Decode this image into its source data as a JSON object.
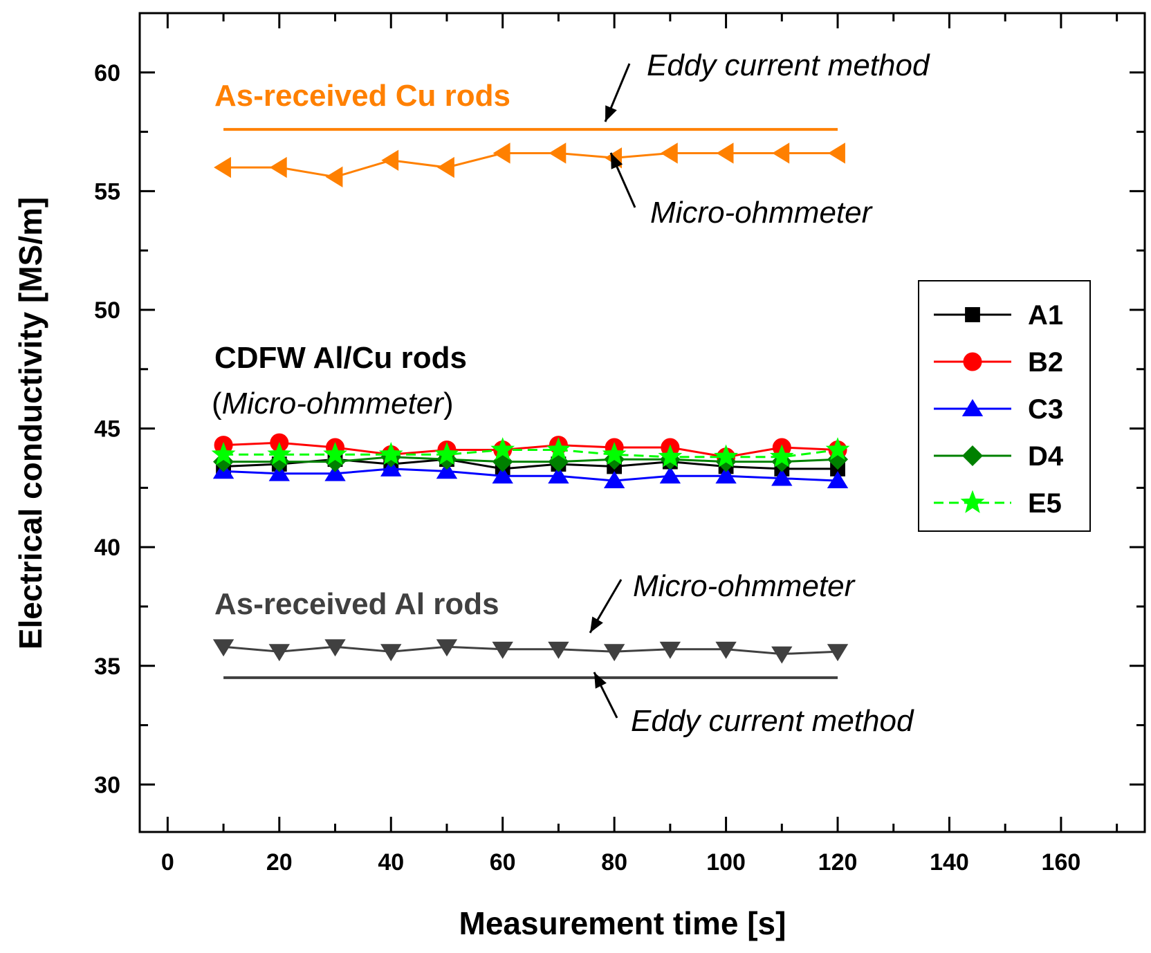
{
  "chart_data": {
    "type": "line",
    "xlabel": "Measurement time [s]",
    "ylabel": "Electrical conductivity [MS/m]",
    "xlim": [
      -5,
      175
    ],
    "ylim": [
      28,
      62.5
    ],
    "xticks": [
      "0",
      "20",
      "40",
      "60",
      "80",
      "100",
      "120",
      "140",
      "160"
    ],
    "yticks": [
      "30",
      "35",
      "40",
      "45",
      "50",
      "55",
      "60"
    ],
    "x": [
      10,
      20,
      30,
      40,
      50,
      60,
      70,
      80,
      90,
      100,
      110,
      120
    ],
    "legend_position": "right",
    "series": [
      {
        "name": "A1",
        "legend": true,
        "color": "#000000",
        "marker": "square",
        "values": [
          43.4,
          43.5,
          43.7,
          43.5,
          43.7,
          43.3,
          43.5,
          43.4,
          43.6,
          43.4,
          43.3,
          43.3
        ]
      },
      {
        "name": "B2",
        "legend": true,
        "color": "#ff0000",
        "marker": "circle",
        "values": [
          44.3,
          44.4,
          44.2,
          43.9,
          44.1,
          44.1,
          44.3,
          44.2,
          44.2,
          43.8,
          44.2,
          44.1
        ]
      },
      {
        "name": "C3",
        "legend": true,
        "color": "#0000ff",
        "marker": "triangle-up",
        "values": [
          43.2,
          43.1,
          43.1,
          43.3,
          43.2,
          43.0,
          43.0,
          42.8,
          43.0,
          43.0,
          42.9,
          42.8
        ]
      },
      {
        "name": "D4",
        "legend": true,
        "color": "#008000",
        "marker": "diamond",
        "values": [
          43.6,
          43.6,
          43.6,
          43.8,
          43.7,
          43.6,
          43.6,
          43.7,
          43.7,
          43.6,
          43.6,
          43.7
        ]
      },
      {
        "name": "E5",
        "legend": true,
        "color": "#00ff00",
        "marker": "star",
        "dashed": true,
        "values": [
          43.9,
          43.9,
          43.9,
          43.9,
          43.9,
          44.1,
          44.1,
          43.9,
          43.8,
          43.8,
          43.8,
          44.1
        ]
      },
      {
        "name": "As-received Cu rods (Micro-ohmmeter)",
        "legend": false,
        "color": "#ff8000",
        "marker": "triangle-left",
        "values": [
          56.0,
          56.0,
          55.6,
          56.3,
          56.0,
          56.6,
          56.6,
          56.4,
          56.6,
          56.6,
          56.6,
          56.6
        ]
      },
      {
        "name": "As-received Al rods (Micro-ohmmeter)",
        "legend": false,
        "color": "#404040",
        "marker": "triangle-down",
        "values": [
          35.8,
          35.6,
          35.8,
          35.6,
          35.8,
          35.7,
          35.7,
          35.6,
          35.7,
          35.7,
          35.5,
          35.6
        ]
      }
    ],
    "reference_lines": [
      {
        "name": "Cu eddy current",
        "y": 57.6,
        "x_range": [
          10,
          120
        ],
        "color": "#ff8000"
      },
      {
        "name": "Al eddy current",
        "y": 34.5,
        "x_range": [
          10,
          120
        ],
        "color": "#404040"
      }
    ],
    "annotations": {
      "cu_title": "As-received Cu rods",
      "cu_eddy": "Eddy current method",
      "cu_micro": "Micro-ohmmeter",
      "cdfw_title": "CDFW Al/Cu rods",
      "cdfw_paren_open": "(",
      "cdfw_method": "Micro-ohmmeter",
      "cdfw_paren_close": ")",
      "al_title": "As-received Al rods",
      "al_micro": "Micro-ohmmeter",
      "al_eddy": "Eddy current method"
    },
    "colors": {
      "cu": "#ff8000",
      "al": "#404040"
    }
  }
}
